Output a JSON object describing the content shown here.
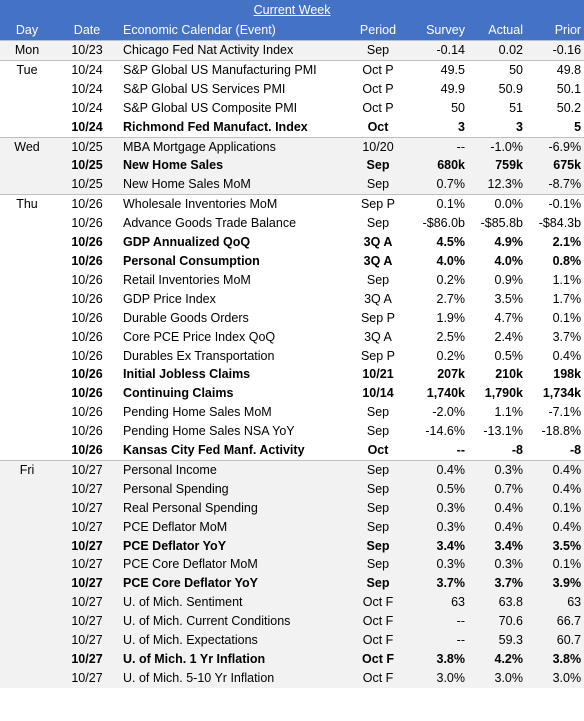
{
  "table": {
    "title": "Current Week",
    "headers": [
      "Day",
      "Date",
      "Economic Calendar (Event)",
      "Period",
      "Survey",
      "Actual",
      "Prior"
    ],
    "groups": [
      {
        "day": "Mon",
        "shaded": true,
        "rows": [
          {
            "cells": [
              "10/23",
              "Chicago Fed Nat Activity Index",
              "Sep",
              "-0.14",
              "0.02",
              "-0.16"
            ]
          }
        ]
      },
      {
        "day": "Tue",
        "shaded": false,
        "rows": [
          {
            "cells": [
              "10/24",
              "S&P Global US Manufacturing PMI",
              "Oct P",
              "49.5",
              "50",
              "49.8"
            ]
          },
          {
            "cells": [
              "10/24",
              "S&P Global US Services PMI",
              "Oct P",
              "49.9",
              "50.9",
              "50.1"
            ]
          },
          {
            "cells": [
              "10/24",
              "S&P Global US Composite PMI",
              "Oct P",
              "50",
              "51",
              "50.2"
            ]
          },
          {
            "cells": [
              "10/24",
              "Richmond Fed Manufact. Index",
              "Oct",
              "3",
              "3",
              "5"
            ],
            "bold": true
          }
        ]
      },
      {
        "day": "Wed",
        "shaded": true,
        "rows": [
          {
            "cells": [
              "10/25",
              "MBA Mortgage Applications",
              "10/20",
              "--",
              "-1.0%",
              "-6.9%"
            ]
          },
          {
            "cells": [
              "10/25",
              "New Home Sales",
              "Sep",
              "680k",
              "759k",
              "675k"
            ],
            "bold": true
          },
          {
            "cells": [
              "10/25",
              "New Home Sales MoM",
              "Sep",
              "0.7%",
              "12.3%",
              "-8.7%"
            ]
          }
        ]
      },
      {
        "day": "Thu",
        "shaded": false,
        "rows": [
          {
            "cells": [
              "10/26",
              "Wholesale Inventories MoM",
              "Sep P",
              "0.1%",
              "0.0%",
              "-0.1%"
            ]
          },
          {
            "cells": [
              "10/26",
              "Advance Goods Trade Balance",
              "Sep",
              "-$86.0b",
              "-$85.8b",
              "-$84.3b"
            ]
          },
          {
            "cells": [
              "10/26",
              "GDP Annualized QoQ",
              "3Q A",
              "4.5%",
              "4.9%",
              "2.1%"
            ],
            "bold": true
          },
          {
            "cells": [
              "10/26",
              "Personal Consumption",
              "3Q A",
              "4.0%",
              "4.0%",
              "0.8%"
            ],
            "bold": true
          },
          {
            "cells": [
              "10/26",
              "Retail Inventories MoM",
              "Sep",
              "0.2%",
              "0.9%",
              "1.1%"
            ]
          },
          {
            "cells": [
              "10/26",
              "GDP Price Index",
              "3Q A",
              "2.7%",
              "3.5%",
              "1.7%"
            ]
          },
          {
            "cells": [
              "10/26",
              "Durable Goods Orders",
              "Sep P",
              "1.9%",
              "4.7%",
              "0.1%"
            ]
          },
          {
            "cells": [
              "10/26",
              "Core PCE Price Index QoQ",
              "3Q A",
              "2.5%",
              "2.4%",
              "3.7%"
            ]
          },
          {
            "cells": [
              "10/26",
              "Durables Ex Transportation",
              "Sep P",
              "0.2%",
              "0.5%",
              "0.4%"
            ]
          },
          {
            "cells": [
              "10/26",
              "Initial Jobless Claims",
              "10/21",
              "207k",
              "210k",
              "198k"
            ],
            "bold": true
          },
          {
            "cells": [
              "10/26",
              "Continuing Claims",
              "10/14",
              "1,740k",
              "1,790k",
              "1,734k"
            ],
            "bold": true
          },
          {
            "cells": [
              "10/26",
              "Pending Home Sales MoM",
              "Sep",
              "-2.0%",
              "1.1%",
              "-7.1%"
            ]
          },
          {
            "cells": [
              "10/26",
              "Pending Home Sales NSA YoY",
              "Sep",
              "-14.6%",
              "-13.1%",
              "-18.8%"
            ]
          },
          {
            "cells": [
              "10/26",
              "Kansas City Fed Manf. Activity",
              "Oct",
              "--",
              "-8",
              "-8"
            ],
            "bold": true
          }
        ]
      },
      {
        "day": "Fri",
        "shaded": true,
        "rows": [
          {
            "cells": [
              "10/27",
              "Personal Income",
              "Sep",
              "0.4%",
              "0.3%",
              "0.4%"
            ]
          },
          {
            "cells": [
              "10/27",
              "Personal Spending",
              "Sep",
              "0.5%",
              "0.7%",
              "0.4%"
            ]
          },
          {
            "cells": [
              "10/27",
              "Real Personal Spending",
              "Sep",
              "0.3%",
              "0.4%",
              "0.1%"
            ]
          },
          {
            "cells": [
              "10/27",
              "PCE Deflator MoM",
              "Sep",
              "0.3%",
              "0.4%",
              "0.4%"
            ]
          },
          {
            "cells": [
              "10/27",
              "PCE Deflator YoY",
              "Sep",
              "3.4%",
              "3.4%",
              "3.5%"
            ],
            "bold": true
          },
          {
            "cells": [
              "10/27",
              "PCE Core Deflator MoM",
              "Sep",
              "0.3%",
              "0.3%",
              "0.1%"
            ]
          },
          {
            "cells": [
              "10/27",
              "PCE Core Deflator YoY",
              "Sep",
              "3.7%",
              "3.7%",
              "3.9%"
            ],
            "bold": true
          },
          {
            "cells": [
              "10/27",
              "U. of Mich. Sentiment",
              "Oct F",
              "63",
              "63.8",
              "63"
            ]
          },
          {
            "cells": [
              "10/27",
              "U. of Mich. Current Conditions",
              "Oct F",
              "--",
              "70.6",
              "66.7"
            ]
          },
          {
            "cells": [
              "10/27",
              "U. of Mich. Expectations",
              "Oct F",
              "--",
              "59.3",
              "60.7"
            ]
          },
          {
            "cells": [
              "10/27",
              "U. of Mich. 1 Yr Inflation",
              "Oct F",
              "3.8%",
              "4.2%",
              "3.8%"
            ],
            "bold": true
          },
          {
            "cells": [
              "10/27",
              "U. of Mich. 5-10 Yr Inflation",
              "Oct F",
              "3.0%",
              "3.0%",
              "3.0%"
            ]
          }
        ]
      }
    ]
  }
}
